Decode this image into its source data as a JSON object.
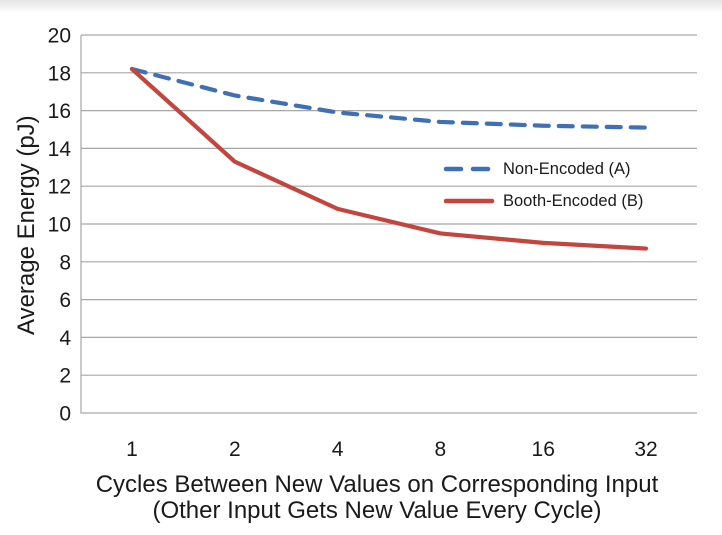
{
  "chart_data": {
    "type": "line",
    "categories": [
      "1",
      "2",
      "4",
      "8",
      "16",
      "32"
    ],
    "series": [
      {
        "name": "Non-Encoded (A)",
        "style": "dashed",
        "color": "#3f70b6",
        "values": [
          18.2,
          16.8,
          15.9,
          15.4,
          15.2,
          15.1
        ]
      },
      {
        "name": "Booth-Encoded (B)",
        "style": "solid",
        "color": "#c3453e",
        "values": [
          18.2,
          13.3,
          10.8,
          9.5,
          9.0,
          8.7
        ]
      }
    ],
    "title": "",
    "xlabel_line1": "Cycles Between New Values on Corresponding Input",
    "xlabel_line2": "(Other Input Gets New Value Every Cycle)",
    "ylabel": "Average Energy (pJ)",
    "ylim": [
      0,
      20
    ],
    "ytick_step": 2,
    "grid": "horizontal",
    "legend_position": "inside-right",
    "colors": {
      "gridline": "#a6a6a6",
      "axis": "#a6a6a6",
      "text": "#1a1a1a"
    }
  }
}
